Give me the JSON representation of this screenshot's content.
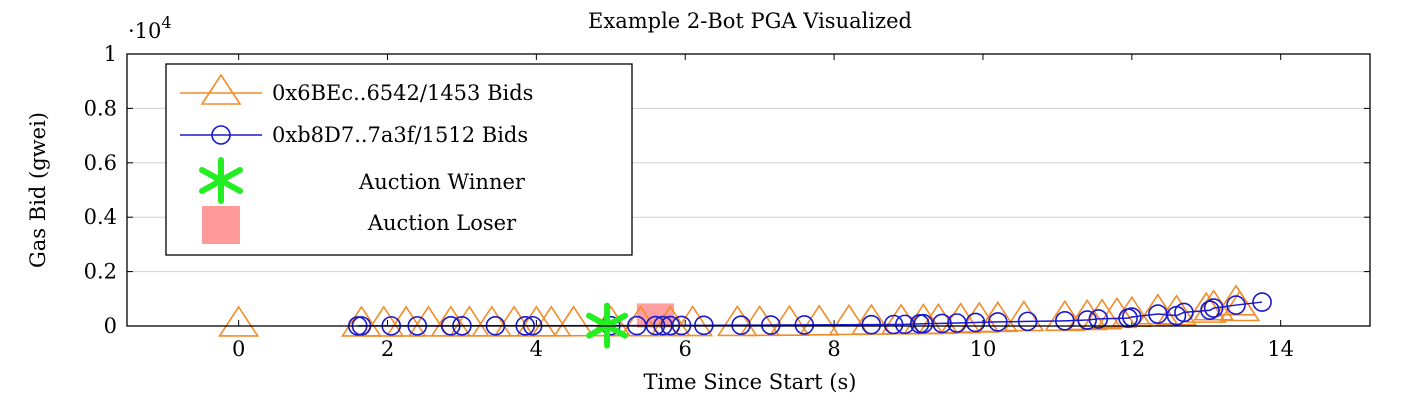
{
  "chart_data": {
    "type": "scatter",
    "title": "Example 2-Bot PGA Visualized",
    "xlabel": "Time Since Start (s)",
    "ylabel": "Gas Bid (gwei)",
    "y_multiplier": "·10",
    "y_multiplier_exp": "4",
    "xlim": [
      -1.5,
      15.2
    ],
    "ylim": [
      0,
      1
    ],
    "x_ticks": [
      0,
      2,
      4,
      6,
      8,
      10,
      12,
      14
    ],
    "y_ticks": [
      0,
      0.2,
      0.4,
      0.6,
      0.8,
      1
    ],
    "x_tick_labels": [
      "0",
      "2",
      "4",
      "6",
      "8",
      "10",
      "12",
      "14"
    ],
    "y_tick_labels": [
      "0",
      "0.2",
      "0.4",
      "0.6",
      "0.8",
      "1"
    ],
    "grid": "horizontal",
    "legend_position": "top-left",
    "series": [
      {
        "name": "0x6BEc..6542/1453 Bids",
        "color": "#f28c28",
        "marker": "triangle",
        "x": [
          0,
          1.65,
          1.95,
          2.25,
          2.55,
          2.85,
          3.1,
          3.4,
          3.7,
          4.0,
          4.2,
          4.5,
          5.0,
          5.4,
          5.8,
          6.1,
          6.7,
          7.0,
          7.4,
          7.8,
          8.2,
          8.5,
          8.9,
          9.2,
          9.4,
          9.7,
          9.95,
          10.2,
          10.55,
          11.1,
          11.4,
          11.6,
          11.8,
          12.0,
          12.35,
          12.6,
          13.0,
          13.1,
          13.4,
          13.45
        ],
        "y": [
          0.0002,
          0.0003,
          0.0004,
          0.0004,
          0.0005,
          0.0005,
          0.0006,
          0.0006,
          0.0007,
          0.0007,
          0.0008,
          0.0009,
          0.001,
          0.0012,
          0.0014,
          0.0015,
          0.002,
          0.0025,
          0.003,
          0.0045,
          0.006,
          0.007,
          0.008,
          0.009,
          0.01,
          0.012,
          0.015,
          0.017,
          0.02,
          0.021,
          0.024,
          0.027,
          0.032,
          0.036,
          0.045,
          0.041,
          0.051,
          0.06,
          0.078,
          0.057
        ],
        "line": false
      },
      {
        "name": "0xb8D7..7a3f/1512 Bids",
        "color": "#1a1acc",
        "marker": "circle",
        "x": [
          1.6,
          1.65,
          2.05,
          2.4,
          2.85,
          3.0,
          3.45,
          3.85,
          3.95,
          5.0,
          5.35,
          5.6,
          5.7,
          5.8,
          5.95,
          6.25,
          6.75,
          7.15,
          7.6,
          8.5,
          8.8,
          8.95,
          9.15,
          9.2,
          9.45,
          9.65,
          9.9,
          10.2,
          10.6,
          11.1,
          11.4,
          11.55,
          11.95,
          12.0,
          12.35,
          12.6,
          12.7,
          13.05,
          13.1,
          13.4,
          13.75
        ],
        "y": [
          0.0004,
          0.0005,
          0.0005,
          0.0005,
          0.0006,
          0.0007,
          0.0007,
          0.0008,
          0.0009,
          0.0012,
          0.0015,
          0.0016,
          0.0017,
          0.0017,
          0.0022,
          0.0025,
          0.003,
          0.0035,
          0.004,
          0.005,
          0.0055,
          0.006,
          0.008,
          0.0085,
          0.0095,
          0.011,
          0.013,
          0.015,
          0.017,
          0.019,
          0.022,
          0.026,
          0.029,
          0.033,
          0.044,
          0.038,
          0.05,
          0.058,
          0.066,
          0.077,
          0.088
        ],
        "line": true
      }
    ],
    "winner": {
      "name": "Auction Winner",
      "x": 4.95,
      "y": 0.0012,
      "color": "#22ee22",
      "marker": "asterisk"
    },
    "loser": {
      "name": "Auction Loser",
      "x": 5.45,
      "y": 0.0014,
      "x_extent": [
        5.35,
        5.85
      ],
      "y_extent": [
        -0.006,
        0.083
      ],
      "color": "#ff9a9a",
      "marker": "square"
    }
  }
}
